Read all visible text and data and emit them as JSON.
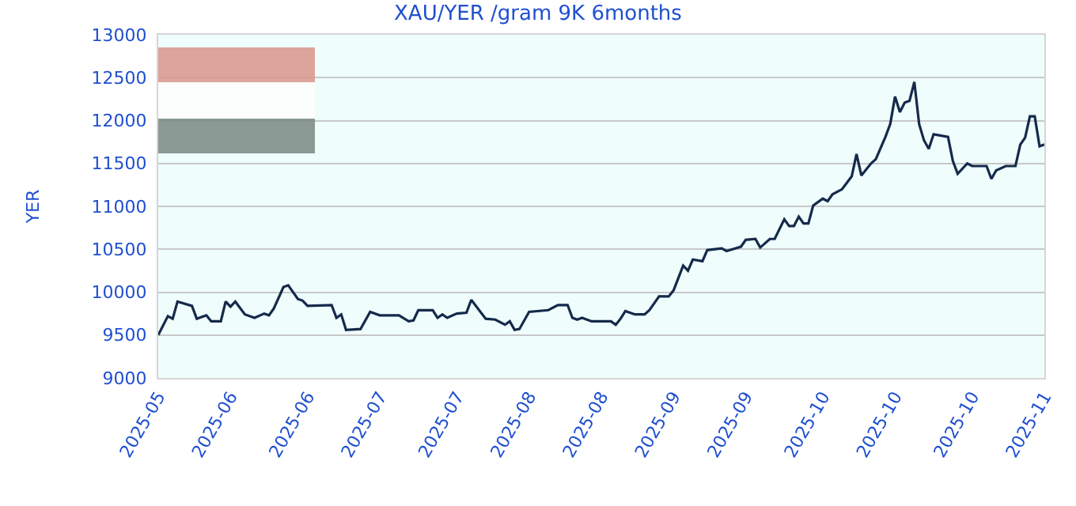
{
  "chart_data": {
    "type": "line",
    "title": "XAU/YER /gram 9K 6months",
    "ylabel": "YER",
    "x": [
      "2025-05-05",
      "2025-05-07",
      "2025-05-08",
      "2025-05-09",
      "2025-05-12",
      "2025-05-13",
      "2025-05-15",
      "2025-05-16",
      "2025-05-18",
      "2025-05-19",
      "2025-05-20",
      "2025-05-21",
      "2025-05-23",
      "2025-05-25",
      "2025-05-27",
      "2025-05-28",
      "2025-05-29",
      "2025-05-31",
      "2025-06-01",
      "2025-06-03",
      "2025-06-04",
      "2025-06-05",
      "2025-06-10",
      "2025-06-11",
      "2025-06-12",
      "2025-06-13",
      "2025-06-16",
      "2025-06-18",
      "2025-06-20",
      "2025-06-24",
      "2025-06-26",
      "2025-06-27",
      "2025-06-28",
      "2025-07-01",
      "2025-07-02",
      "2025-07-03",
      "2025-07-04",
      "2025-07-06",
      "2025-07-08",
      "2025-07-09",
      "2025-07-12",
      "2025-07-14",
      "2025-07-16",
      "2025-07-17",
      "2025-07-18",
      "2025-07-19",
      "2025-07-21",
      "2025-07-25",
      "2025-07-27",
      "2025-07-29",
      "2025-07-30",
      "2025-07-31",
      "2025-08-01",
      "2025-08-03",
      "2025-08-07",
      "2025-08-08",
      "2025-08-09",
      "2025-08-10",
      "2025-08-12",
      "2025-08-14",
      "2025-08-15",
      "2025-08-17",
      "2025-08-19",
      "2025-08-20",
      "2025-08-22",
      "2025-08-23",
      "2025-08-24",
      "2025-08-26",
      "2025-08-27",
      "2025-08-30",
      "2025-08-31",
      "2025-09-03",
      "2025-09-04",
      "2025-09-06",
      "2025-09-07",
      "2025-09-09",
      "2025-09-10",
      "2025-09-12",
      "2025-09-13",
      "2025-09-14",
      "2025-09-15",
      "2025-09-16",
      "2025-09-17",
      "2025-09-18",
      "2025-09-20",
      "2025-09-21",
      "2025-09-22",
      "2025-09-24",
      "2025-09-26",
      "2025-09-27",
      "2025-09-28",
      "2025-09-30",
      "2025-10-01",
      "2025-10-03",
      "2025-10-04",
      "2025-10-05",
      "2025-10-06",
      "2025-10-07",
      "2025-10-08",
      "2025-10-09",
      "2025-10-10",
      "2025-10-11",
      "2025-10-12",
      "2025-10-13",
      "2025-10-16",
      "2025-10-17",
      "2025-10-18",
      "2025-10-20",
      "2025-10-21",
      "2025-10-24",
      "2025-10-25",
      "2025-10-26",
      "2025-10-28",
      "2025-10-30",
      "2025-10-31",
      "2025-11-01",
      "2025-11-02",
      "2025-11-03",
      "2025-11-04",
      "2025-11-05"
    ],
    "series": [
      {
        "color": "#152a4a",
        "values": [
          9500,
          9720,
          9690,
          9890,
          9840,
          9690,
          9730,
          9660,
          9660,
          9890,
          9830,
          9890,
          9740,
          9700,
          9750,
          9730,
          9810,
          10060,
          10080,
          9920,
          9900,
          9840,
          9850,
          9700,
          9740,
          9560,
          9570,
          9770,
          9730,
          9730,
          9660,
          9670,
          9790,
          9790,
          9700,
          9740,
          9700,
          9750,
          9760,
          9910,
          9690,
          9680,
          9620,
          9660,
          9560,
          9570,
          9770,
          9790,
          9850,
          9850,
          9700,
          9680,
          9700,
          9660,
          9660,
          9620,
          9690,
          9780,
          9740,
          9740,
          9790,
          9950,
          9950,
          10020,
          10310,
          10250,
          10380,
          10360,
          10490,
          10510,
          10480,
          10530,
          10610,
          10620,
          10520,
          10620,
          10620,
          10850,
          10770,
          10770,
          10880,
          10800,
          10800,
          11010,
          11090,
          11060,
          11140,
          11200,
          11350,
          11610,
          11360,
          11500,
          11550,
          11810,
          11960,
          12280,
          12100,
          12210,
          12230,
          12450,
          11960,
          11770,
          11670,
          11840,
          11810,
          11530,
          11380,
          11500,
          11470,
          11470,
          11320,
          11420,
          11470,
          11470,
          11720,
          11800,
          12050,
          12050,
          11700,
          11720
        ]
      }
    ],
    "xlim": [
      "2025-05-05",
      "2025-11-05"
    ],
    "xticks": [
      {
        "value": "2025-05-05",
        "label": "2025-05"
      },
      {
        "value": "2025-05-20",
        "label": "2025-06"
      },
      {
        "value": "2025-06-05",
        "label": "2025-06"
      },
      {
        "value": "2025-06-20",
        "label": "2025-07"
      },
      {
        "value": "2025-07-06",
        "label": "2025-07"
      },
      {
        "value": "2025-07-21",
        "label": "2025-08"
      },
      {
        "value": "2025-08-05",
        "label": "2025-08"
      },
      {
        "value": "2025-08-20",
        "label": "2025-09"
      },
      {
        "value": "2025-09-04",
        "label": "2025-09"
      },
      {
        "value": "2025-09-20",
        "label": "2025-10"
      },
      {
        "value": "2025-10-05",
        "label": "2025-10"
      },
      {
        "value": "2025-10-21",
        "label": "2025-10"
      },
      {
        "value": "2025-11-05",
        "label": "2025-11"
      }
    ],
    "ylim": [
      9000,
      13000
    ],
    "yticks": [
      9000,
      9500,
      10000,
      10500,
      11000,
      11500,
      12000,
      12500,
      13000
    ],
    "grid": "y",
    "marker": "none",
    "line_style": "solid"
  }
}
